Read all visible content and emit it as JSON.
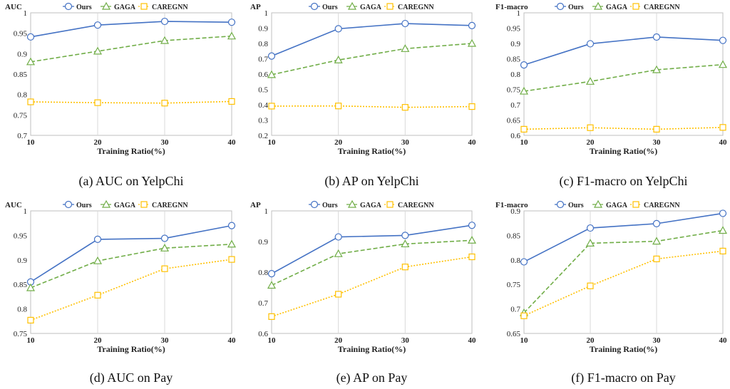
{
  "colors": {
    "ours": "#4472C4",
    "gaga": "#70AD47",
    "caregnn": "#FFC000"
  },
  "chart_data": [
    {
      "type": "line",
      "ylabel": "AUC",
      "xlabel": "Training Ratio(%)",
      "caption": "(a) AUC on YelpChi",
      "x": [
        10,
        20,
        30,
        40
      ],
      "x_ticks": [
        "10",
        "20",
        "30",
        "40"
      ],
      "ylim": [
        0.7,
        1
      ],
      "y_ticks": [
        "0.7",
        "0.75",
        "0.8",
        "0.85",
        "0.9",
        "0.95",
        "1"
      ],
      "series": [
        {
          "name": "Ours",
          "marker": "circle",
          "values": [
            0.941,
            0.97,
            0.979,
            0.977
          ]
        },
        {
          "name": "GAGA",
          "marker": "triangle",
          "values": [
            0.88,
            0.906,
            0.932,
            0.943
          ]
        },
        {
          "name": "CAREGNN",
          "marker": "square",
          "values": [
            0.782,
            0.78,
            0.779,
            0.783
          ]
        }
      ]
    },
    {
      "type": "line",
      "ylabel": "AP",
      "xlabel": "Training Ratio(%)",
      "caption": "(b) AP on YelpChi",
      "x": [
        10,
        20,
        30,
        40
      ],
      "x_ticks": [
        "10",
        "20",
        "30",
        "40"
      ],
      "ylim": [
        0.2,
        1
      ],
      "y_ticks": [
        "0.2",
        "0.3",
        "0.4",
        "0.5",
        "0.6",
        "0.7",
        "0.8",
        "0.9",
        "1"
      ],
      "series": [
        {
          "name": "Ours",
          "marker": "circle",
          "values": [
            0.718,
            0.896,
            0.93,
            0.917
          ]
        },
        {
          "name": "GAGA",
          "marker": "triangle",
          "values": [
            0.596,
            0.692,
            0.766,
            0.8
          ]
        },
        {
          "name": "CAREGNN",
          "marker": "square",
          "values": [
            0.391,
            0.392,
            0.383,
            0.388
          ]
        }
      ]
    },
    {
      "type": "line",
      "ylabel": "F1-macro",
      "xlabel": "Training Ratio(%)",
      "caption": "(c) F1-macro on YelpChi",
      "x": [
        10,
        20,
        30,
        40
      ],
      "x_ticks": [
        "10",
        "20",
        "30",
        "40"
      ],
      "ylim": [
        0.6,
        1
      ],
      "y_ticks": [
        "0.6",
        "0.65",
        "0.7",
        "0.75",
        "0.8",
        "0.85",
        "0.9",
        "0.95",
        "1"
      ],
      "series": [
        {
          "name": "Ours",
          "marker": "circle",
          "values": [
            0.83,
            0.899,
            0.921,
            0.91
          ]
        },
        {
          "name": "GAGA",
          "marker": "triangle",
          "values": [
            0.744,
            0.776,
            0.814,
            0.831
          ]
        },
        {
          "name": "CAREGNN",
          "marker": "square",
          "values": [
            0.62,
            0.625,
            0.62,
            0.626
          ]
        }
      ]
    },
    {
      "type": "line",
      "ylabel": "AUC",
      "xlabel": "Training Ratio(%)",
      "caption": "(d) AUC on Pay",
      "x": [
        10,
        20,
        30,
        40
      ],
      "x_ticks": [
        "10",
        "20",
        "30",
        "40"
      ],
      "ylim": [
        0.75,
        1
      ],
      "y_ticks": [
        "0.75",
        "0.8",
        "0.85",
        "0.9",
        "0.95",
        "1"
      ],
      "series": [
        {
          "name": "Ours",
          "marker": "circle",
          "values": [
            0.855,
            0.942,
            0.944,
            0.97
          ]
        },
        {
          "name": "GAGA",
          "marker": "triangle",
          "values": [
            0.843,
            0.898,
            0.924,
            0.932
          ]
        },
        {
          "name": "CAREGNN",
          "marker": "square",
          "values": [
            0.777,
            0.828,
            0.882,
            0.901
          ]
        }
      ]
    },
    {
      "type": "line",
      "ylabel": "AP",
      "xlabel": "Training Ratio(%)",
      "caption": "(e) AP on Pay",
      "x": [
        10,
        20,
        30,
        40
      ],
      "x_ticks": [
        "10",
        "20",
        "30",
        "40"
      ],
      "ylim": [
        0.6,
        1
      ],
      "y_ticks": [
        "0.6",
        "0.7",
        "0.8",
        "0.9",
        "1"
      ],
      "series": [
        {
          "name": "Ours",
          "marker": "circle",
          "values": [
            0.795,
            0.915,
            0.92,
            0.953
          ]
        },
        {
          "name": "GAGA",
          "marker": "triangle",
          "values": [
            0.757,
            0.86,
            0.892,
            0.904
          ]
        },
        {
          "name": "CAREGNN",
          "marker": "square",
          "values": [
            0.655,
            0.728,
            0.817,
            0.85
          ]
        }
      ]
    },
    {
      "type": "line",
      "ylabel": "F1-macro",
      "xlabel": "Training Ratio(%)",
      "caption": "(f) F1-macro on Pay",
      "x": [
        10,
        20,
        30,
        40
      ],
      "x_ticks": [
        "10",
        "20",
        "30",
        "40"
      ],
      "ylim": [
        0.65,
        0.9
      ],
      "y_ticks": [
        "0.65",
        "0.7",
        "0.75",
        "0.8",
        "0.85",
        "0.9"
      ],
      "series": [
        {
          "name": "Ours",
          "marker": "circle",
          "values": [
            0.796,
            0.865,
            0.874,
            0.895
          ]
        },
        {
          "name": "GAGA",
          "marker": "triangle",
          "values": [
            0.692,
            0.834,
            0.838,
            0.86
          ]
        },
        {
          "name": "CAREGNN",
          "marker": "square",
          "values": [
            0.686,
            0.747,
            0.802,
            0.818
          ]
        }
      ]
    }
  ]
}
